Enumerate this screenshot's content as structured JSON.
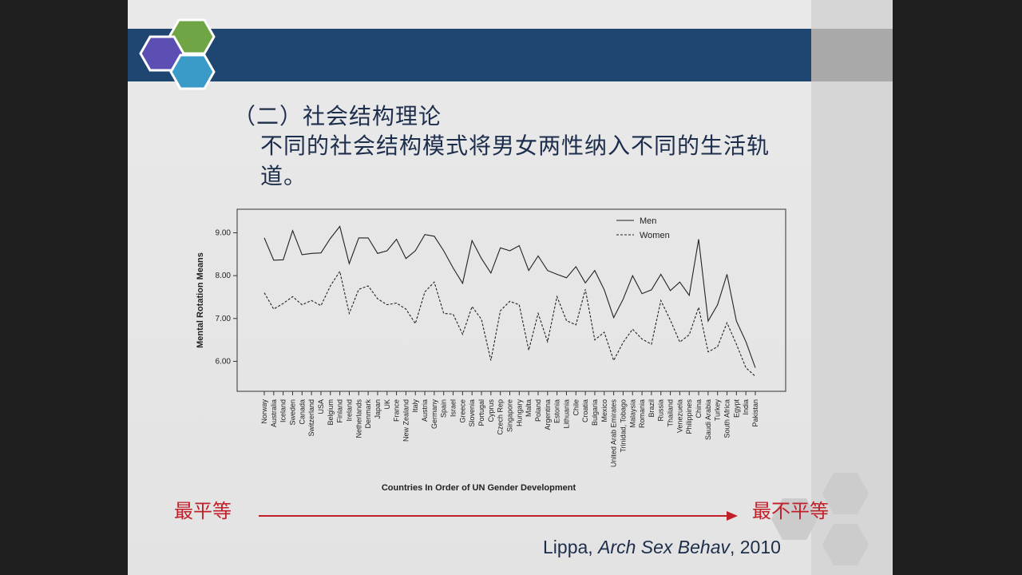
{
  "slide": {
    "title": "（二）社会结构理论",
    "body": "不同的社会结构模式将男女两性纳入不同的生活轨道。"
  },
  "arrow": {
    "left_label": "最平等",
    "right_label": "最不平等",
    "color": "#c0202a"
  },
  "citation": {
    "author": "Lippa, ",
    "journal": "Arch Sex Behav",
    "year": ", 2010"
  },
  "colors": {
    "header": "#1f4670",
    "hex_green": "#6fa544",
    "hex_purple": "#5b4fb3",
    "hex_blue": "#3a9ac8"
  },
  "chart_data": {
    "type": "line",
    "title": "",
    "xlabel": "Countries In Order of UN Gender Development",
    "ylabel": "Mental Rotation Means",
    "ylim": [
      5.3,
      9.55
    ],
    "yticks": [
      "6.00",
      "7.00",
      "8.00",
      "9.00"
    ],
    "legend_position": "top-right",
    "categories": [
      "Norway",
      "Australia",
      "Iceland",
      "Sweden",
      "Canada",
      "Switzerland",
      "USA",
      "Belgium",
      "Finland",
      "Ireland",
      "Netherlands",
      "Denmark",
      "Japan",
      "UK",
      "France",
      "New Zealand",
      "Italy",
      "Austria",
      "Germany",
      "Spain",
      "Israel",
      "Greece",
      "Slovenia",
      "Portugal",
      "Cyprus",
      "Czech Rep",
      "Singapore",
      "Hungary",
      "Malta",
      "Poland",
      "Argentina",
      "Estonia",
      "Lithuania",
      "Chile",
      "Croatia",
      "Bulgaria",
      "Mexico",
      "United Arab Emirates",
      "Trinidad, Tobago",
      "Malaysia",
      "Romania",
      "Brazil",
      "Russia",
      "Thailand",
      "Venezuela",
      "Philippines",
      "China",
      "Saudi Arabia",
      "Turkey",
      "South Africa",
      "Egypt",
      "India",
      "Pakistan"
    ],
    "series": [
      {
        "name": "Men",
        "style": "solid",
        "values": [
          8.88,
          8.36,
          8.37,
          9.05,
          8.49,
          8.52,
          8.53,
          8.87,
          9.15,
          8.28,
          8.88,
          8.88,
          8.52,
          8.58,
          8.85,
          8.4,
          8.58,
          8.96,
          8.92,
          8.58,
          8.18,
          7.82,
          8.82,
          8.4,
          8.06,
          8.65,
          8.58,
          8.7,
          8.12,
          8.46,
          8.12,
          8.03,
          7.95,
          8.21,
          7.83,
          8.12,
          7.67,
          7.02,
          7.45,
          8.0,
          7.58,
          7.67,
          8.03,
          7.65,
          7.85,
          7.54,
          8.85,
          6.94,
          7.32,
          8.03,
          6.94,
          6.46,
          5.85
        ]
      },
      {
        "name": "Women",
        "style": "dashed",
        "values": [
          7.6,
          7.22,
          7.35,
          7.51,
          7.32,
          7.42,
          7.3,
          7.76,
          8.1,
          7.12,
          7.68,
          7.76,
          7.46,
          7.32,
          7.36,
          7.22,
          6.88,
          7.62,
          7.85,
          7.12,
          7.1,
          6.63,
          7.28,
          6.98,
          6.02,
          7.18,
          7.4,
          7.32,
          6.26,
          7.12,
          6.46,
          7.51,
          6.95,
          6.85,
          7.68,
          6.5,
          6.68,
          6.02,
          6.44,
          6.75,
          6.52,
          6.4,
          7.42,
          6.96,
          6.45,
          6.62,
          7.26,
          6.22,
          6.34,
          6.9,
          6.4,
          5.85,
          5.65
        ]
      }
    ]
  }
}
